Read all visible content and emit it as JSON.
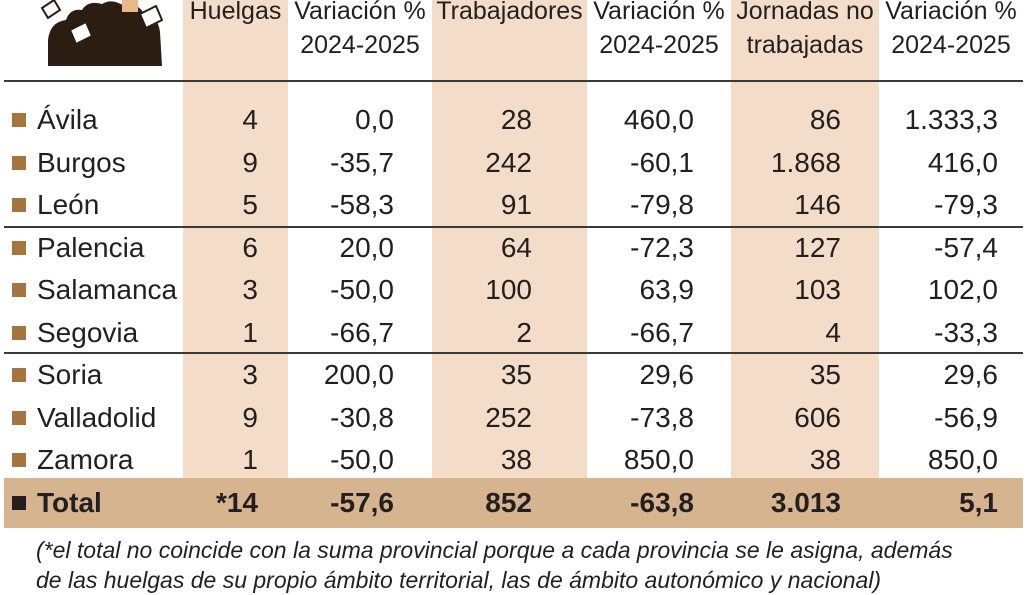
{
  "headers": {
    "huelgas": [
      "Huelgas"
    ],
    "var1": [
      "Variación %",
      "2024-2025"
    ],
    "trabajadores": [
      "Trabajadores"
    ],
    "var2": [
      "Variación %",
      "2024-2025"
    ],
    "jornadas": [
      "Jornadas no",
      "trabajadas"
    ],
    "var3": [
      "Variación %",
      "2024-2025"
    ]
  },
  "rows": [
    {
      "name": "Ávila",
      "huelgas": "4",
      "var1": "0,0",
      "trab": "28",
      "var2": "460,0",
      "jorn": "86",
      "var3": "1.333,3"
    },
    {
      "name": "Burgos",
      "huelgas": "9",
      "var1": "-35,7",
      "trab": "242",
      "var2": "-60,1",
      "jorn": "1.868",
      "var3": "416,0"
    },
    {
      "name": "León",
      "huelgas": "5",
      "var1": "-58,3",
      "trab": "91",
      "var2": "-79,8",
      "jorn": "146",
      "var3": "-79,3"
    },
    {
      "name": "Palencia",
      "huelgas": "6",
      "var1": "20,0",
      "trab": "64",
      "var2": "-72,3",
      "jorn": "127",
      "var3": "-57,4"
    },
    {
      "name": "Salamanca",
      "huelgas": "3",
      "var1": "-50,0",
      "trab": "100",
      "var2": "63,9",
      "jorn": "103",
      "var3": "102,0"
    },
    {
      "name": "Segovia",
      "huelgas": "1",
      "var1": "-66,7",
      "trab": "2",
      "var2": "-66,7",
      "jorn": "4",
      "var3": "-33,3"
    },
    {
      "name": "Soria",
      "huelgas": "3",
      "var1": "200,0",
      "trab": "35",
      "var2": "29,6",
      "jorn": "35",
      "var3": "29,6"
    },
    {
      "name": "Valladolid",
      "huelgas": "9",
      "var1": "-30,8",
      "trab": "252",
      "var2": "-73,8",
      "jorn": "606",
      "var3": "-56,9"
    },
    {
      "name": "Zamora",
      "huelgas": "1",
      "var1": "-50,0",
      "trab": "38",
      "var2": "850,0",
      "jorn": "38",
      "var3": "850,0"
    }
  ],
  "total": {
    "name": "Total",
    "huelgas": "*14",
    "var1": "-57,6",
    "trab": "852",
    "var2": "-63,8",
    "jorn": "3.013",
    "var3": "5,1"
  },
  "footnote": [
    "(*el total no coincide con la suma provincial porque a cada provincia se le asigna, además",
    "de las huelgas de su propio ámbito territorial, las de ámbito autonómico y nacional)"
  ],
  "colors": {
    "stripe": "#f3dcc8",
    "bullet": "#a5743f",
    "total_band": "#d6b48f"
  }
}
